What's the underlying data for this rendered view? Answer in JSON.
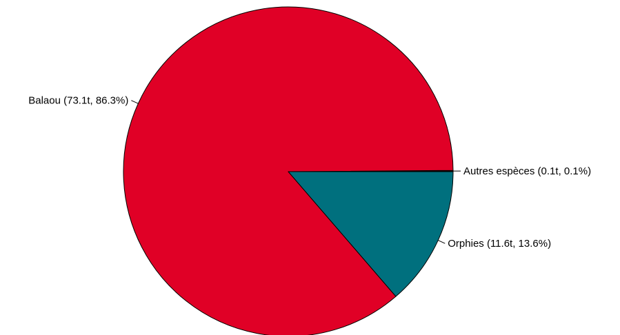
{
  "chart_data": {
    "type": "pie",
    "title": "",
    "start_angle_deg": 0,
    "direction": "counterclockwise",
    "slices": [
      {
        "name": "Autres espèces",
        "value": 0.1,
        "percent": 0.1,
        "label": "Autres espèces (0.1t, 0.1%)",
        "color": "#000000"
      },
      {
        "name": "Balaou",
        "value": 73.1,
        "percent": 86.3,
        "label": "Balaou (73.1t, 86.3%)",
        "color": "#E00026"
      },
      {
        "name": "Orphies",
        "value": 11.6,
        "percent": 13.6,
        "label": "Orphies (11.6t, 13.6%)",
        "color": "#00707E"
      }
    ]
  }
}
